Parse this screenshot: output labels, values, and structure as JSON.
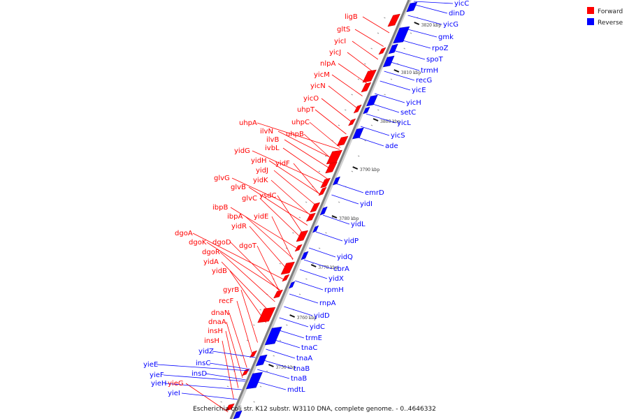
{
  "caption": "Escherichia coli str. K12 substr. W3110 DNA, complete genome. - 0..4646332",
  "legend": [
    {
      "label": "Forward",
      "color": "#ff0000"
    },
    {
      "label": "Reverse",
      "color": "#0000ff"
    }
  ],
  "colors": {
    "forward": "#ff0000",
    "reverse": "#0000ff",
    "axis": "#808080"
  },
  "ticks": [
    "3820 kbp",
    "3810 kbp",
    "3800 kbp",
    "3790 kbp",
    "3780 kbp",
    "3770 kbp",
    "3760 kbp",
    "3750 kbp"
  ],
  "forward_genes": [
    "ligB",
    "gltS",
    "yicI",
    "yicJ",
    "nlpA",
    "yicM",
    "yicN",
    "yicO",
    "uhpT",
    "uhpC",
    "uhpA",
    "uhpB",
    "ilvN",
    "ilvB",
    "ivbL",
    "yidF",
    "yidG",
    "yidH",
    "yidJ",
    "yidK",
    "glvG",
    "glvB",
    "ysdC",
    "glvC",
    "ibpB",
    "ibpA",
    "yidE",
    "yidR",
    "dgoT",
    "dgoA",
    "dgoK",
    "dgoD",
    "dgoR",
    "yidA",
    "yidB",
    "gyrB",
    "recF",
    "dnaN",
    "dnaA",
    "insH",
    "insH",
    "yieG"
  ],
  "reverse_genes": [
    "yicC",
    "dinD",
    "yicG",
    "gmk",
    "rpoZ",
    "spoT",
    "trmH",
    "recG",
    "yicE",
    "yicH",
    "setC",
    "yicL",
    "yicS",
    "ade",
    "emrD",
    "yidI",
    "yidL",
    "yidP",
    "yidQ",
    "cbrA",
    "yidX",
    "rpmH",
    "rnpA",
    "yidD",
    "yidC",
    "trmE",
    "tnaC",
    "tnaA",
    "tnaB",
    "tnaB",
    "mdtL",
    "yieE",
    "yieF",
    "insC",
    "insD",
    "yieH",
    "yieI",
    "yidZ"
  ]
}
